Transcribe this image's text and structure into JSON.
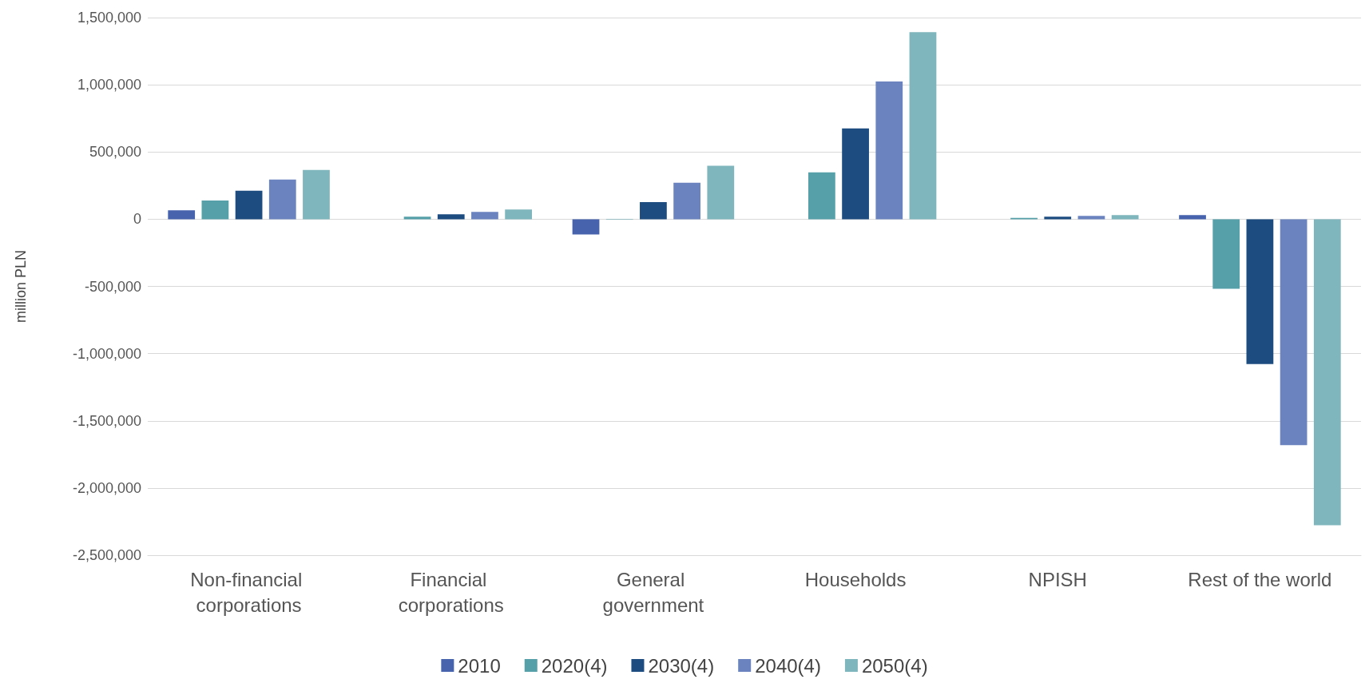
{
  "chart_data": {
    "type": "bar",
    "ylabel": "million PLN",
    "categories": [
      "Non-financial corporations",
      "Financial corporations",
      "General government",
      "Households",
      "NPISH",
      "Rest of the world"
    ],
    "series": [
      {
        "name": "2010",
        "color": "#4763ae",
        "values": [
          66000,
          null,
          -114000,
          null,
          null,
          30000
        ]
      },
      {
        "name": "2020(4)",
        "color": "#56a0a9",
        "values": [
          139000,
          18000,
          -3000,
          349000,
          10000,
          -518000
        ]
      },
      {
        "name": "2030(4)",
        "color": "#1c4c80",
        "values": [
          211000,
          36000,
          127000,
          675000,
          18000,
          -1078000
        ]
      },
      {
        "name": "2040(4)",
        "color": "#6b84c0",
        "values": [
          295000,
          54000,
          271000,
          1024000,
          24000,
          -1681000
        ]
      },
      {
        "name": "2050(4)",
        "color": "#7fb6bd",
        "values": [
          367000,
          72000,
          398000,
          1392000,
          30000,
          -2277000
        ]
      }
    ],
    "ylim": [
      -2500000,
      1500000
    ],
    "yticks": [
      {
        "value": -2500000,
        "label": "-2,500,000"
      },
      {
        "value": -2000000,
        "label": "-2,000,000"
      },
      {
        "value": -1500000,
        "label": "-1,500,000"
      },
      {
        "value": -1000000,
        "label": "-1,000,000"
      },
      {
        "value": -500000,
        "label": "-500,000"
      },
      0,
      {
        "value": 500000,
        "label": "500,000"
      },
      {
        "value": 1000000,
        "label": "1,000,000"
      },
      {
        "value": 1500000,
        "label": "1,500,000"
      }
    ],
    "grid": "y",
    "legend": "bottom"
  }
}
